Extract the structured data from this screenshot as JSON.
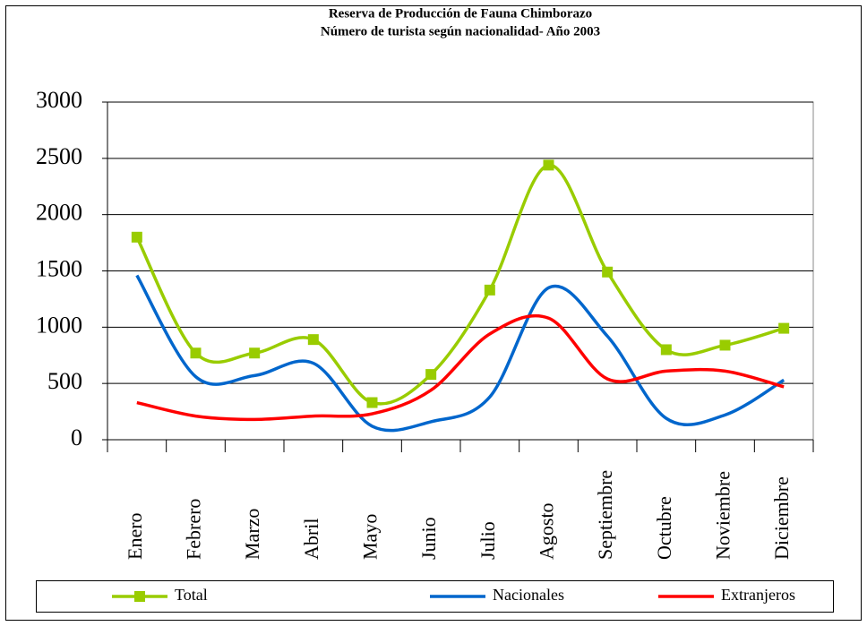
{
  "chart_data": {
    "type": "line",
    "title": "Reserva de Producción de Fauna Chimborazo",
    "subtitle": "Número de turista según nacionalidad- Año 2003",
    "categories": [
      "Enero",
      "Febrero",
      "Marzo",
      "Abril",
      "Mayo",
      "Junio",
      "Julio",
      "Agosto",
      "Septiembre",
      "Octubre",
      "Noviembre",
      "Diciembre"
    ],
    "series": [
      {
        "name": "Total",
        "color": "#99cc00",
        "marker": "square",
        "values": [
          1800,
          770,
          770,
          890,
          330,
          580,
          1330,
          2440,
          1490,
          800,
          840,
          990
        ]
      },
      {
        "name": "Nacionales",
        "color": "#0066cc",
        "marker": "none",
        "values": [
          1460,
          560,
          570,
          680,
          120,
          160,
          380,
          1350,
          920,
          190,
          220,
          530
        ]
      },
      {
        "name": "Extranjeros",
        "color": "#ff0000",
        "marker": "none",
        "values": [
          330,
          210,
          180,
          210,
          230,
          440,
          940,
          1080,
          540,
          610,
          610,
          470
        ]
      }
    ],
    "ylim": [
      0,
      3000
    ],
    "yticks": [
      0,
      500,
      1000,
      1500,
      2000,
      2500,
      3000
    ],
    "grid": true,
    "smooth": true,
    "legend": "bottom"
  }
}
